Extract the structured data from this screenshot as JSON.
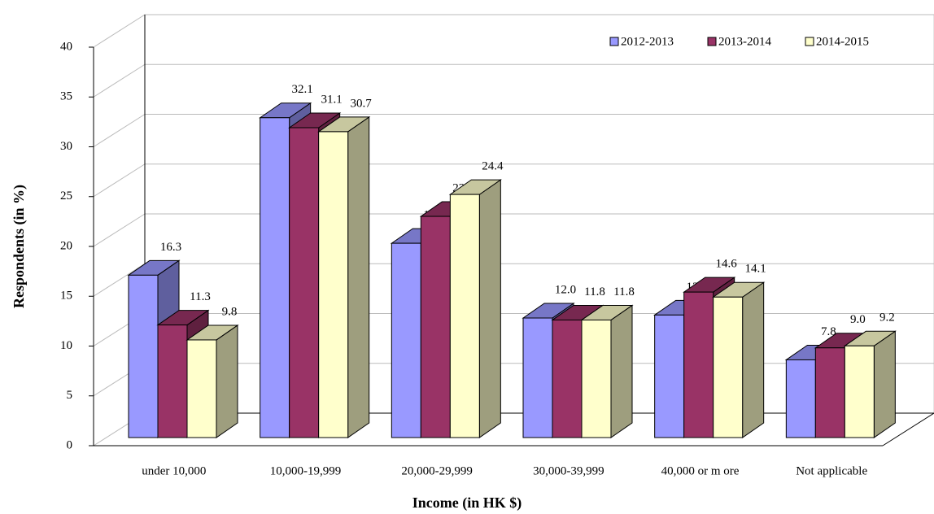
{
  "chart_data": {
    "type": "bar3d",
    "x_label": "Income (in HK $)",
    "y_label": "Respondents (in %)",
    "categories": [
      "under 10,000",
      "10,000-19,999",
      "20,000-29,999",
      "30,000-39,999",
      "40,000 or m ore",
      "Not applicable"
    ],
    "series": [
      {
        "name": "2012-2013",
        "color": "#9999ff",
        "values": [
          16.3,
          32.1,
          19.5,
          12.0,
          12.3,
          7.8
        ],
        "value_labels": [
          "16.3",
          "32.1",
          "19.5",
          "12.0",
          "12.3",
          "7.8"
        ]
      },
      {
        "name": "2013-2014",
        "color": "#993366",
        "values": [
          11.3,
          31.1,
          22.2,
          11.8,
          14.6,
          9.0
        ],
        "value_labels": [
          "11.3",
          "31.1",
          "22.2",
          "11.8",
          "14.6",
          "9.0"
        ]
      },
      {
        "name": "2014-2015",
        "color": "#ffffcc",
        "values": [
          9.8,
          30.7,
          24.4,
          11.8,
          14.1,
          9.2
        ],
        "value_labels": [
          "9.8",
          "30.7",
          "24.4",
          "11.8",
          "14.1",
          "9.2"
        ]
      }
    ],
    "ylim": [
      0,
      40
    ],
    "yticks": [
      0,
      5,
      10,
      15,
      20,
      25,
      30,
      35,
      40
    ],
    "grid": true,
    "legend": "upper right"
  }
}
